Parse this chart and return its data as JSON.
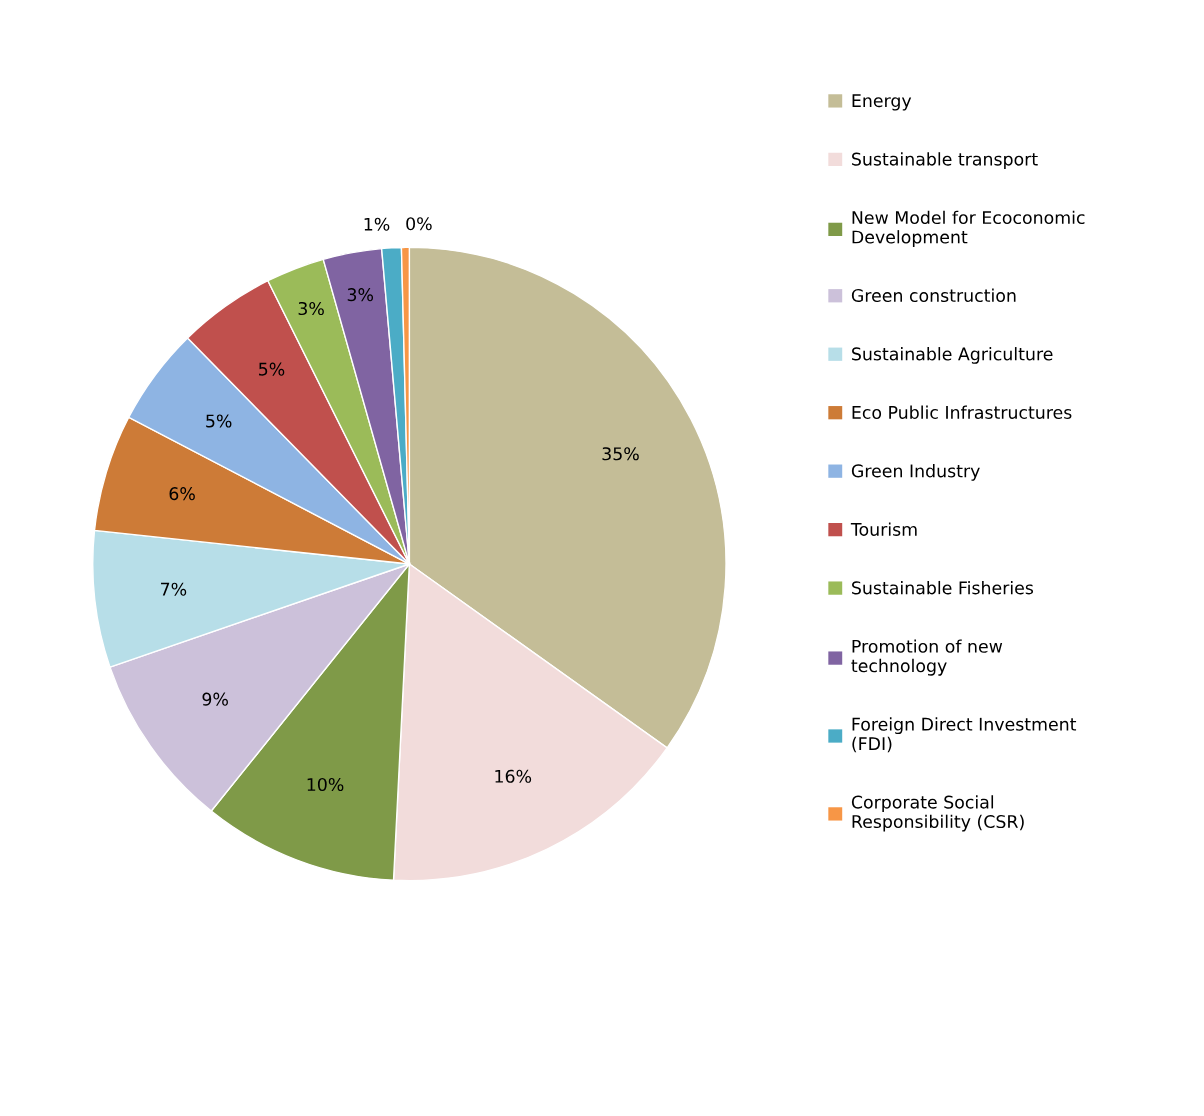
{
  "chart_data": {
    "type": "pie",
    "categories": [
      "Energy",
      "Sustainable transport",
      "New Model for Ecoconomic Development",
      "Green construction",
      "Sustainable Agriculture",
      "Eco Public Infrastructures",
      "Green Industry",
      "Tourism",
      "Sustainable Fisheries",
      "Promotion of new technology",
      "Foreign Direct Investment (FDI)",
      "Corporate Social Responsibility (CSR)"
    ],
    "values": [
      35,
      16,
      10,
      9,
      7,
      6,
      5,
      5,
      3,
      3,
      1,
      0.4
    ],
    "value_labels": [
      "35%",
      "16%",
      "10%",
      "9%",
      "7%",
      "6%",
      "5%",
      "5%",
      "3%",
      "3%",
      "1%",
      "0%"
    ],
    "colors": [
      "#c4bd97",
      "#f2dcdb",
      "#7f9a48",
      "#ccc1da",
      "#b7dee8",
      "#cd7b37",
      "#8eb4e3",
      "#c0504d",
      "#9bbb59",
      "#8064a2",
      "#4bacc6",
      "#f79646"
    ],
    "legend": "right"
  }
}
